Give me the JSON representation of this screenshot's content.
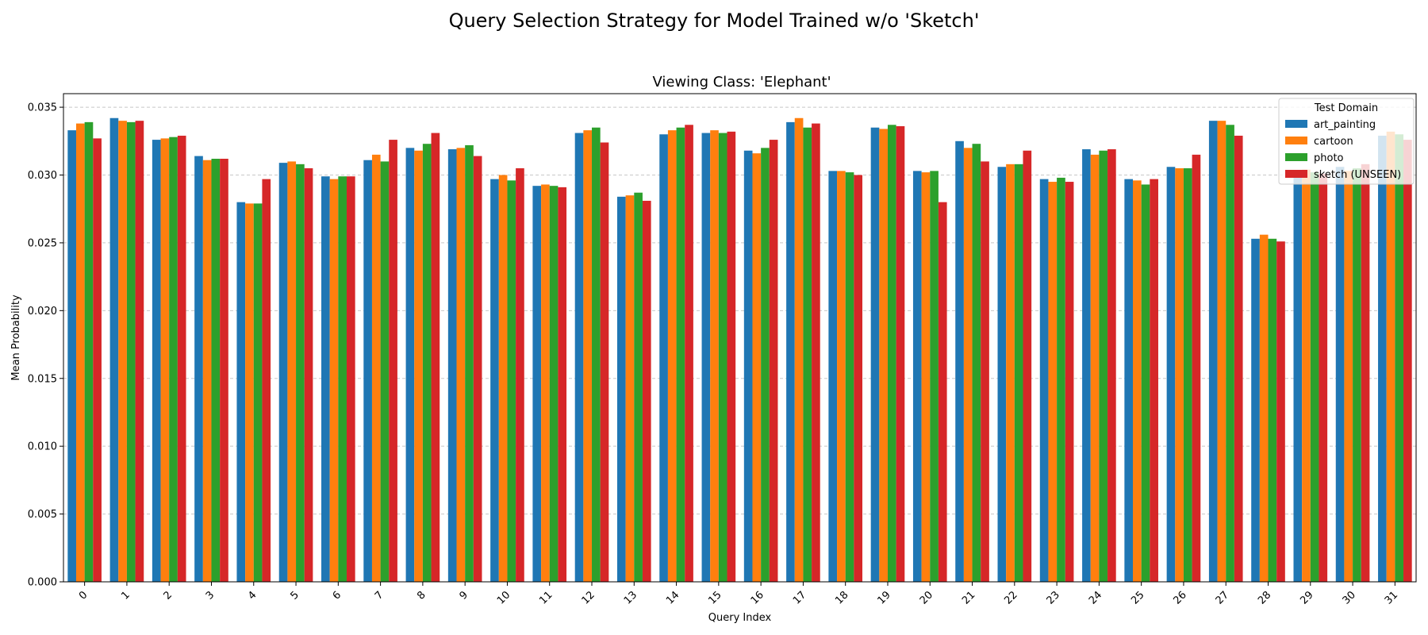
{
  "figure_title": "Query Selection Strategy for Model Trained w/o 'Sketch'",
  "chart_data": {
    "type": "bar",
    "title": "Viewing Class: 'Elephant'",
    "xlabel": "Query Index",
    "ylabel": "Mean Probability",
    "ylim": [
      0,
      0.036
    ],
    "yticks": [
      "0.000",
      "0.005",
      "0.010",
      "0.015",
      "0.020",
      "0.025",
      "0.030",
      "0.035"
    ],
    "ytick_values": [
      0,
      0.005,
      0.01,
      0.015,
      0.02,
      0.025,
      0.03,
      0.035
    ],
    "grid": "y-dashed",
    "legend_title": "Test Domain",
    "legend_position": "top-right",
    "categories": [
      "0",
      "1",
      "2",
      "3",
      "4",
      "5",
      "6",
      "7",
      "8",
      "9",
      "10",
      "11",
      "12",
      "13",
      "14",
      "15",
      "16",
      "17",
      "18",
      "19",
      "20",
      "21",
      "22",
      "23",
      "24",
      "25",
      "26",
      "27",
      "28",
      "29",
      "30",
      "31"
    ],
    "series": [
      {
        "name": "art_painting",
        "color": "#1f77b4",
        "values": [
          0.0333,
          0.0342,
          0.0326,
          0.0314,
          0.028,
          0.0309,
          0.0299,
          0.0311,
          0.032,
          0.0319,
          0.0297,
          0.0292,
          0.0331,
          0.0284,
          0.033,
          0.0331,
          0.0318,
          0.0339,
          0.0303,
          0.0335,
          0.0303,
          0.0325,
          0.0306,
          0.0297,
          0.0319,
          0.0297,
          0.0306,
          0.034,
          0.0253,
          0.0303,
          0.0306,
          0.0329
        ]
      },
      {
        "name": "cartoon",
        "color": "#ff7f0e",
        "values": [
          0.0338,
          0.034,
          0.0327,
          0.0311,
          0.0279,
          0.031,
          0.0297,
          0.0315,
          0.0318,
          0.032,
          0.03,
          0.0293,
          0.0333,
          0.0285,
          0.0333,
          0.0333,
          0.0316,
          0.0342,
          0.0303,
          0.0334,
          0.0302,
          0.032,
          0.0308,
          0.0295,
          0.0315,
          0.0296,
          0.0305,
          0.034,
          0.0256,
          0.0304,
          0.0303,
          0.0332
        ]
      },
      {
        "name": "photo",
        "color": "#2ca02c",
        "values": [
          0.0339,
          0.0339,
          0.0328,
          0.0312,
          0.0279,
          0.0308,
          0.0299,
          0.031,
          0.0323,
          0.0322,
          0.0296,
          0.0292,
          0.0335,
          0.0287,
          0.0335,
          0.0331,
          0.032,
          0.0335,
          0.0302,
          0.0337,
          0.0303,
          0.0323,
          0.0308,
          0.0298,
          0.0318,
          0.0293,
          0.0305,
          0.0337,
          0.0253,
          0.0302,
          0.0305,
          0.033
        ]
      },
      {
        "name": "sketch (UNSEEN)",
        "color": "#d62728",
        "values": [
          0.0327,
          0.034,
          0.0329,
          0.0312,
          0.0297,
          0.0305,
          0.0299,
          0.0326,
          0.0331,
          0.0314,
          0.0305,
          0.0291,
          0.0324,
          0.0281,
          0.0337,
          0.0332,
          0.0326,
          0.0338,
          0.03,
          0.0336,
          0.028,
          0.031,
          0.0318,
          0.0295,
          0.0319,
          0.0297,
          0.0315,
          0.0329,
          0.0251,
          0.0301,
          0.0308,
          0.0326
        ]
      }
    ]
  }
}
